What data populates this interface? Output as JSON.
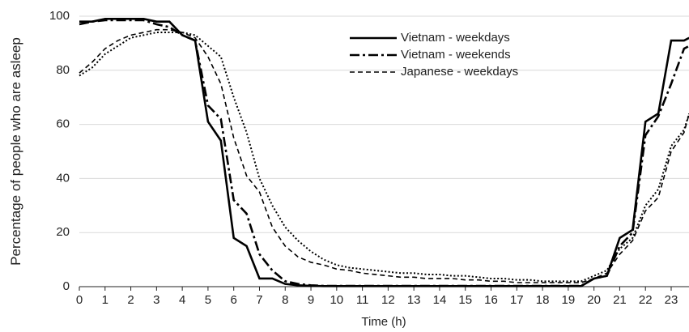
{
  "chart_data": {
    "type": "line",
    "xlabel": "Time (h)",
    "ylabel": "Percentage of people who are asleep",
    "x": [
      0,
      0.5,
      1,
      1.5,
      2,
      2.5,
      3,
      3.5,
      4,
      4.5,
      5,
      5.5,
      6,
      6.5,
      7,
      7.5,
      8,
      8.5,
      9,
      9.5,
      10,
      10.5,
      11,
      11.5,
      12,
      12.5,
      13,
      13.5,
      14,
      14.5,
      15,
      15.5,
      16,
      16.5,
      17,
      17.5,
      18,
      18.5,
      19,
      19.5,
      20,
      20.5,
      21,
      21.5,
      22,
      22.5,
      23,
      23.5,
      23.7
    ],
    "series": [
      {
        "name": "Vietnam - weekdays",
        "color": "#000000",
        "style": "solid",
        "values": [
          98,
          98,
          99,
          99,
          99,
          99,
          98,
          98,
          93,
          91,
          61,
          54,
          18,
          15,
          3,
          3,
          1,
          0.5,
          0.3,
          0.2,
          0.2,
          0.2,
          0.2,
          0.2,
          0.2,
          0.2,
          0.2,
          0.2,
          0.2,
          0.2,
          0.2,
          0.2,
          0.2,
          0.2,
          0.2,
          0.2,
          0.2,
          0.2,
          0.2,
          0.2,
          3,
          4,
          18,
          21,
          61,
          64,
          91,
          91,
          92
        ]
      },
      {
        "name": "Vietnam - weekends",
        "color": "#000000",
        "style": "dashdot",
        "values": [
          97,
          98,
          98.5,
          98.5,
          98.5,
          98.5,
          97,
          96,
          93,
          91,
          67,
          62,
          32,
          27,
          12,
          6,
          2,
          1,
          0.5,
          0.3,
          0.3,
          0.3,
          0.3,
          0.3,
          0.3,
          0.3,
          0.3,
          0.3,
          0.3,
          0.3,
          0.3,
          0.3,
          0.3,
          0.3,
          0.3,
          0.3,
          0.3,
          0.3,
          0.3,
          0.3,
          3,
          4,
          15,
          20,
          56,
          63,
          75,
          88,
          89
        ]
      },
      {
        "name": "Japanese - weekdays",
        "color": "#000000",
        "style": "dashed",
        "values": [
          79,
          83,
          88,
          91,
          93,
          94,
          95,
          95,
          94,
          92,
          85,
          75,
          55,
          41,
          35,
          22,
          15,
          11,
          9,
          8,
          6.5,
          6,
          5,
          4.5,
          4,
          3.5,
          3.5,
          3,
          3,
          3,
          2.5,
          2.5,
          2,
          2,
          1.5,
          1.5,
          1.5,
          1.5,
          1.5,
          1.5,
          3,
          5,
          12,
          17,
          28,
          33,
          50,
          57,
          64
        ]
      },
      {
        "color": "#000000",
        "style": "dotted",
        "values": [
          78,
          81,
          86,
          89,
          92,
          93,
          94,
          94,
          94,
          93,
          89,
          85,
          70,
          57,
          40,
          30,
          22,
          17,
          13,
          10,
          8,
          7,
          6.5,
          6,
          5.5,
          5,
          5,
          4.5,
          4.5,
          4,
          4,
          3.5,
          3,
          3,
          2.5,
          2.5,
          2,
          2,
          2,
          2,
          4,
          6,
          14,
          18,
          30,
          36,
          52,
          58,
          64
        ]
      }
    ],
    "xlim": [
      0,
      23.7
    ],
    "xticks": [
      0,
      1,
      2,
      3,
      4,
      5,
      6,
      7,
      8,
      9,
      10,
      11,
      12,
      13,
      14,
      15,
      16,
      17,
      18,
      19,
      20,
      21,
      22,
      23
    ],
    "ylim": [
      0,
      100
    ],
    "yticks": [
      0,
      20,
      40,
      60,
      80,
      100
    ],
    "grid": true,
    "legend": "top"
  }
}
